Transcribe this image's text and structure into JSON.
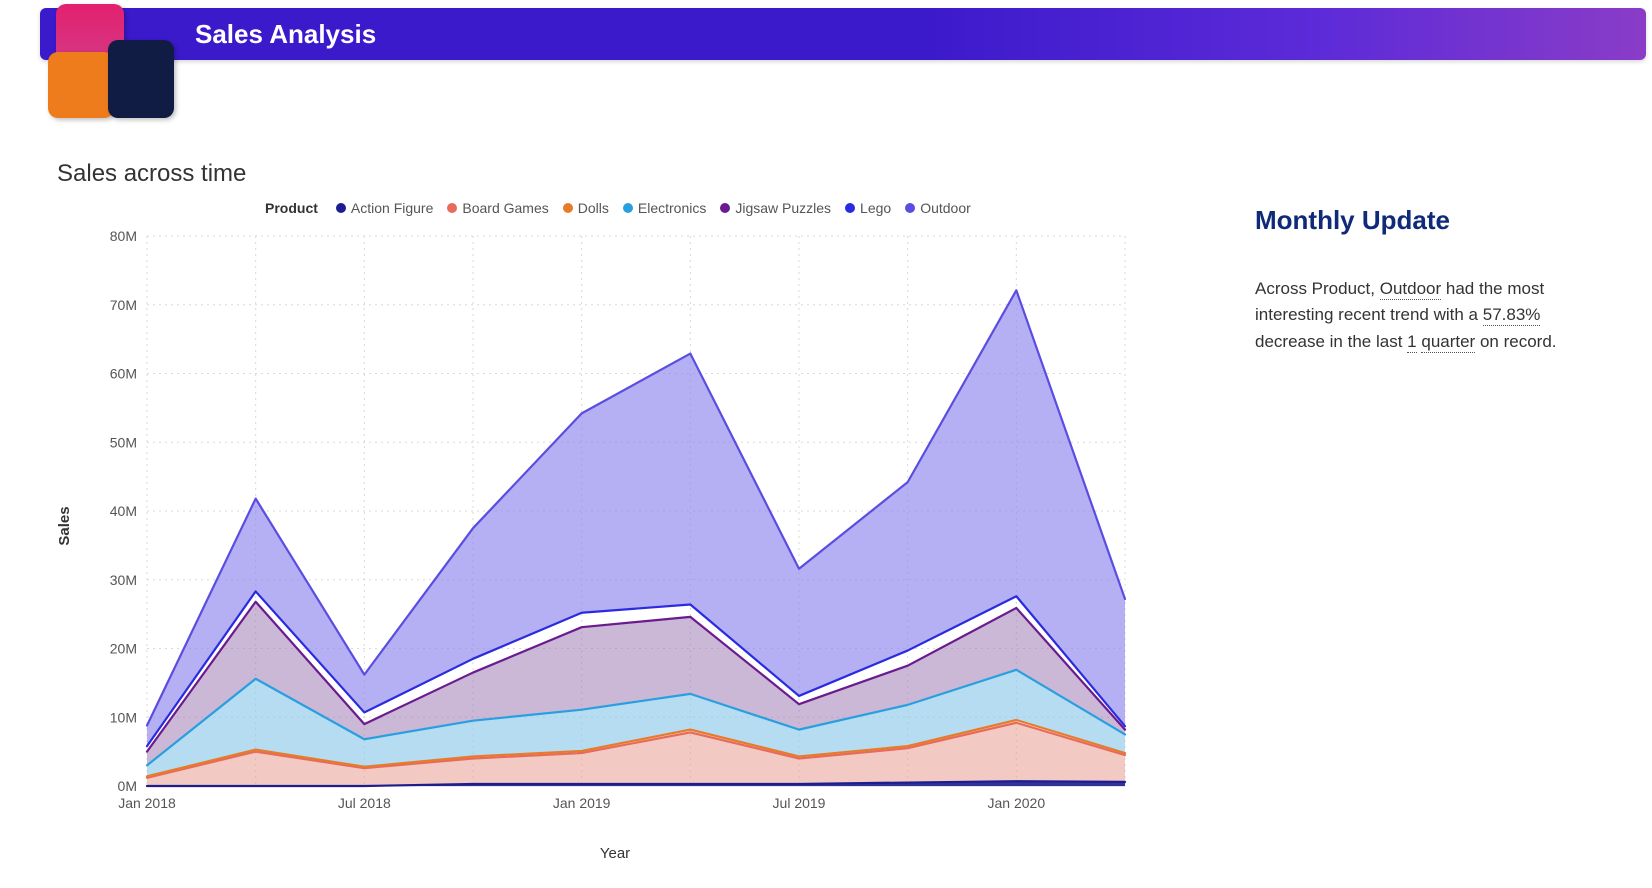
{
  "header": {
    "title": "Sales Analysis",
    "bar_gradient": [
      "#3b1acc",
      "#3b1acc",
      "#5d2bd8",
      "#8a3cc7"
    ],
    "logo_colors": {
      "pink": "#e2216e",
      "orange": "#ee7c1c",
      "navy": "#111c45"
    }
  },
  "chart": {
    "title": "Sales across time",
    "type": "stacked-area",
    "x_label": "Year",
    "y_label": "Sales",
    "legend_title": "Product",
    "background_color": "#ffffff",
    "grid_color": "#d9d9d9",
    "grid_dash": "2,4",
    "axis_line_color": "#c9c9c9",
    "x_ticks": {
      "labels": [
        "Jan 2018",
        "Jul 2018",
        "Jan 2019",
        "Jul 2019",
        "Jan 2020"
      ],
      "indices": [
        0,
        2,
        4,
        6,
        8
      ]
    },
    "x_range_points": 10,
    "y_ticks": {
      "labels": [
        "0M",
        "10M",
        "20M",
        "30M",
        "40M",
        "50M",
        "60M",
        "70M",
        "80M"
      ],
      "values": [
        0,
        10,
        20,
        30,
        40,
        50,
        60,
        70,
        80
      ]
    },
    "ylim": [
      0,
      80
    ],
    "series": [
      {
        "name": "Action Figure",
        "color": "#1c1d8f",
        "fill": "#1c1d8f",
        "fill_opacity": 0.9,
        "values": [
          0.0,
          0.0,
          0.0,
          0.3,
          0.3,
          0.3,
          0.3,
          0.5,
          0.7,
          0.6
        ]
      },
      {
        "name": "Board Games",
        "color": "#e66b5a",
        "fill": "#e89c92",
        "fill_opacity": 0.55,
        "values": [
          1.2,
          5.0,
          2.6,
          3.7,
          4.5,
          7.5,
          3.7,
          5.0,
          8.5,
          3.9
        ]
      },
      {
        "name": "Dolls",
        "color": "#e87b2a",
        "fill": "#e87b2a",
        "fill_opacity": 0.0,
        "values": [
          0.2,
          0.3,
          0.2,
          0.3,
          0.3,
          0.4,
          0.3,
          0.3,
          0.4,
          0.3
        ]
      },
      {
        "name": "Electronics",
        "color": "#2a9fe0",
        "fill": "#8fc9ea",
        "fill_opacity": 0.65,
        "values": [
          1.6,
          10.3,
          4.0,
          5.2,
          6.0,
          5.2,
          3.9,
          6.0,
          7.3,
          2.7
        ]
      },
      {
        "name": "Jigsaw Puzzles",
        "color": "#6a1b8f",
        "fill": "#a07bb5",
        "fill_opacity": 0.55,
        "values": [
          2.0,
          11.2,
          2.2,
          7.0,
          12.0,
          11.2,
          3.7,
          5.7,
          9.0,
          0.7
        ]
      },
      {
        "name": "Lego",
        "color": "#2a2ae0",
        "fill": "#2a2ae0",
        "fill_opacity": 0.0,
        "values": [
          0.8,
          1.5,
          1.7,
          2.0,
          2.1,
          1.8,
          1.2,
          2.2,
          1.7,
          0.5
        ]
      },
      {
        "name": "Outdoor",
        "color": "#5a4de0",
        "fill": "#8e84ec",
        "fill_opacity": 0.65,
        "values": [
          3.0,
          13.5,
          5.5,
          19.0,
          29.0,
          36.5,
          18.5,
          24.5,
          44.5,
          18.5
        ]
      }
    ],
    "line_width": 2.2
  },
  "side": {
    "heading": "Monthly Update",
    "text_parts": {
      "p1": "Across Product, ",
      "u1": "Outdoor",
      "p2": " had the most interesting recent trend with a ",
      "u2": "57.83%",
      "p3": " decrease in the last ",
      "u3": "1",
      "p4": " ",
      "u4": "quarter",
      "p5": " on record."
    }
  }
}
